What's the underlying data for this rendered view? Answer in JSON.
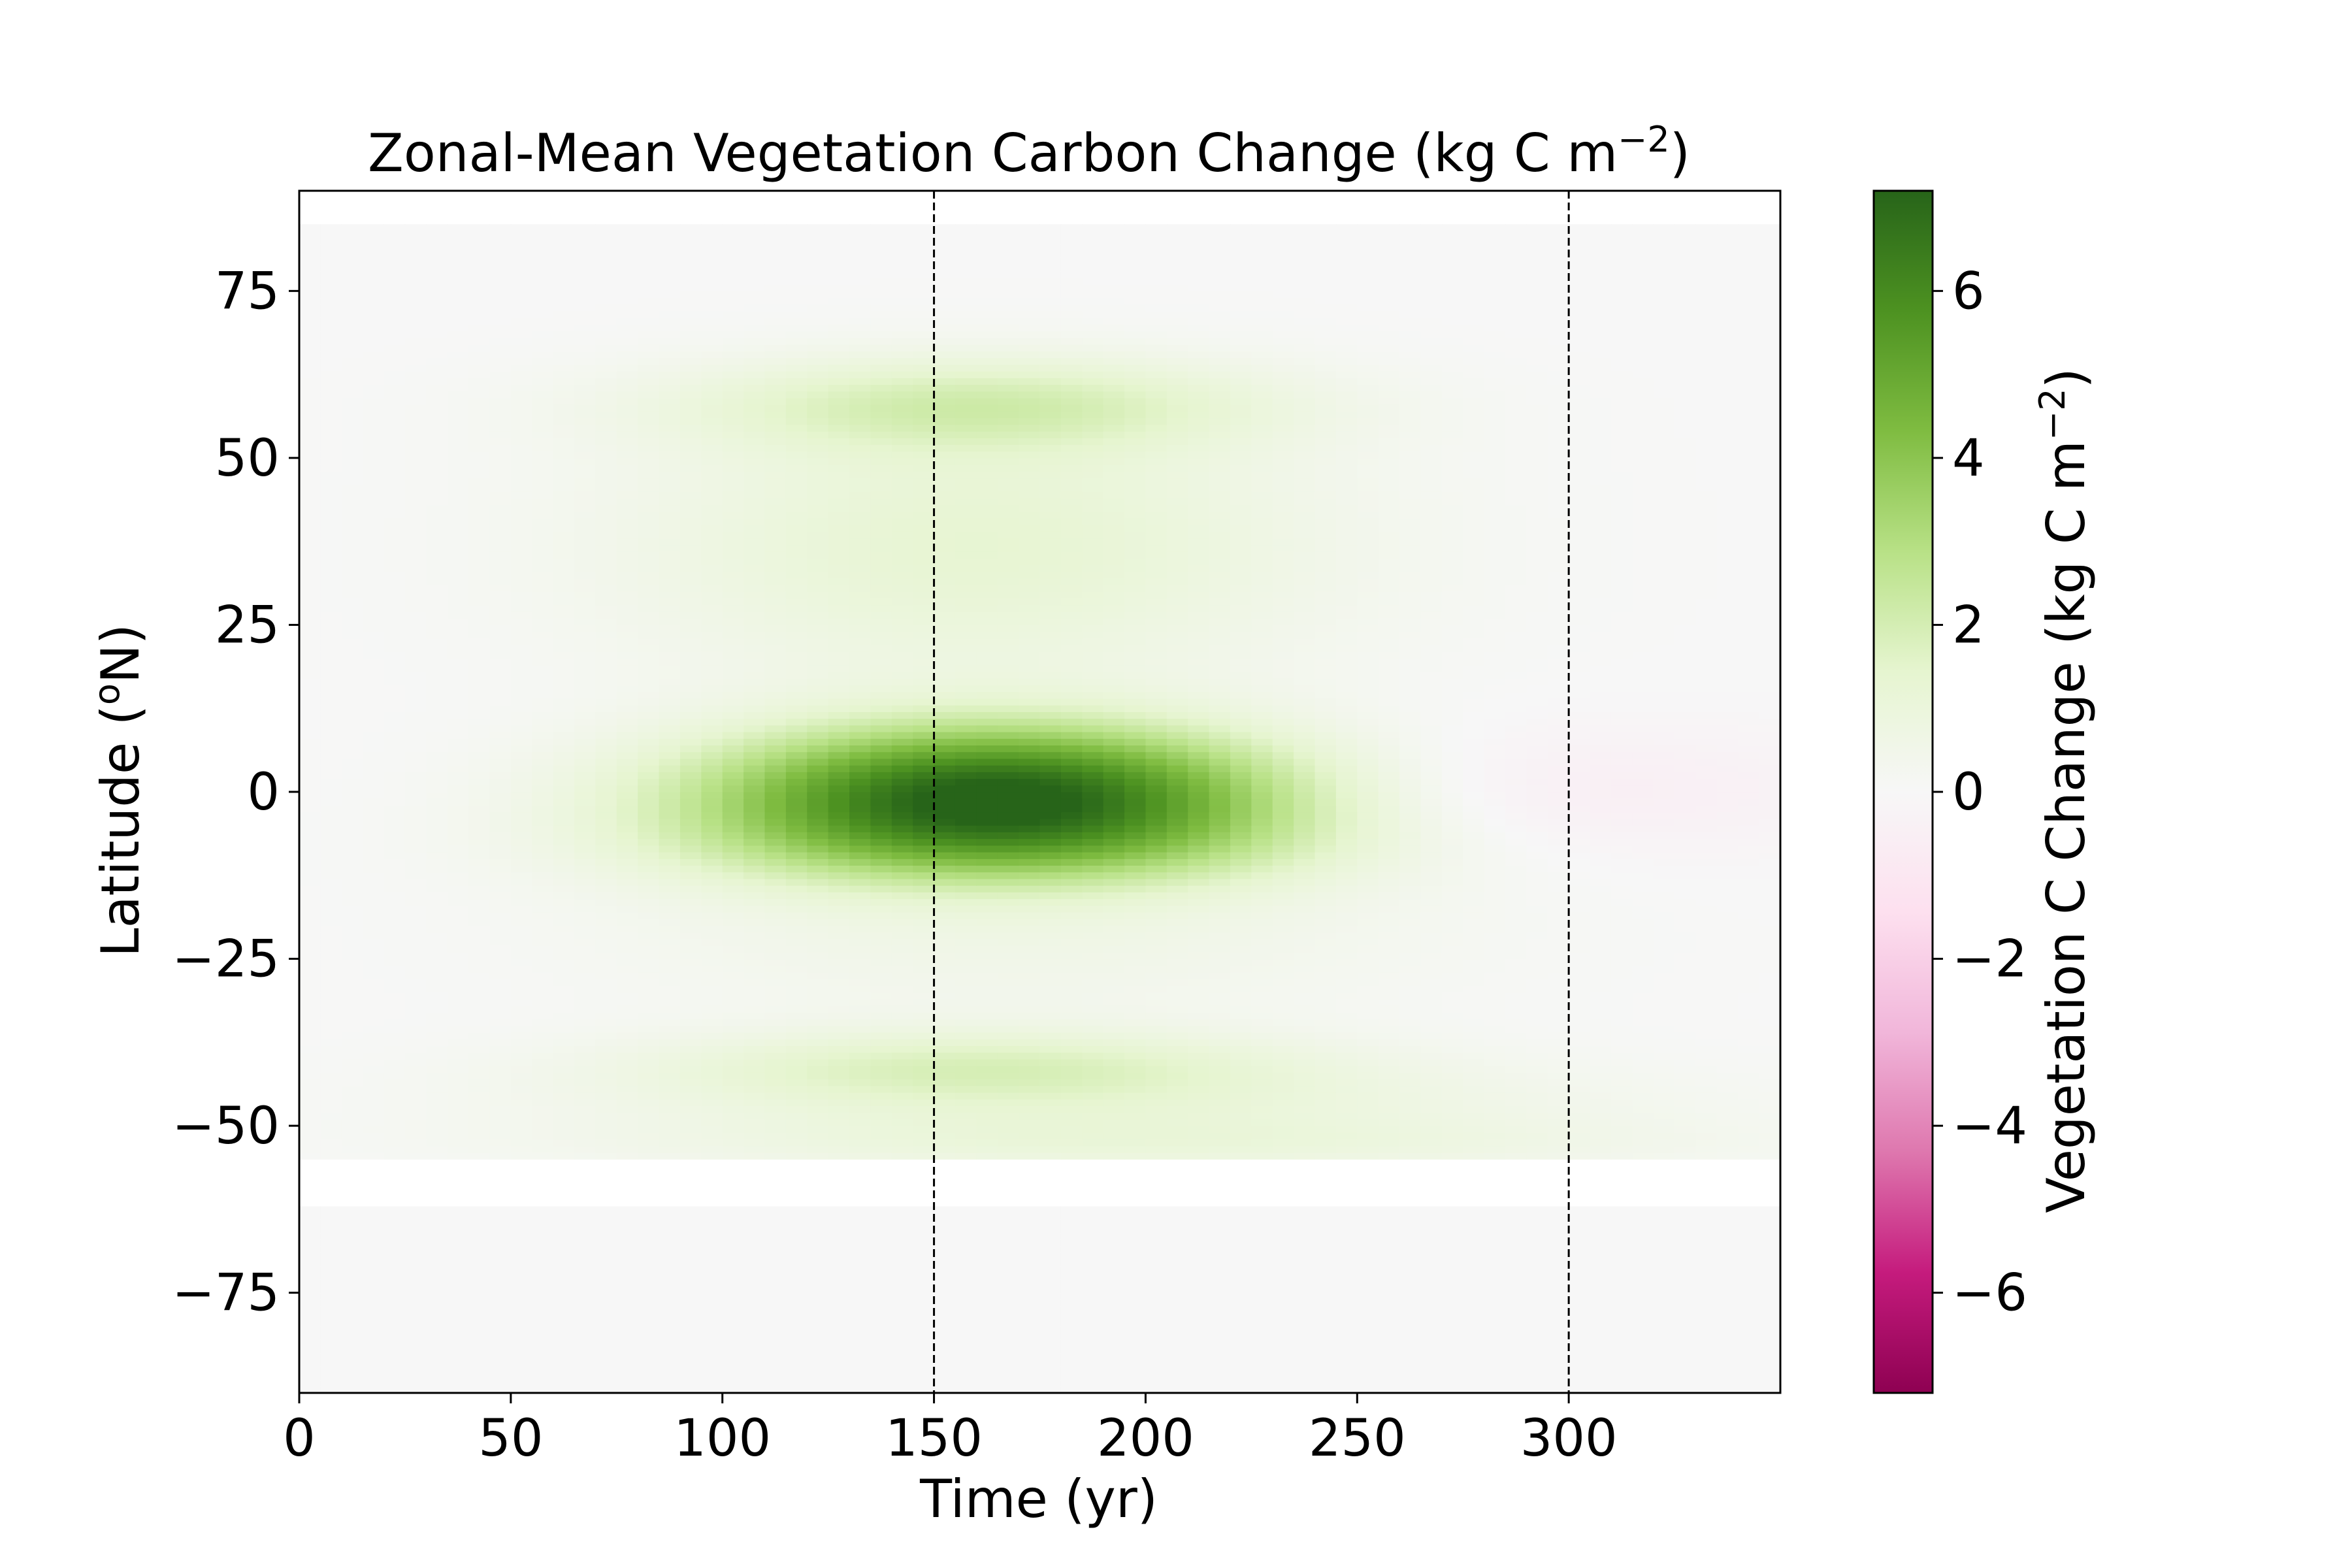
{
  "chart_data": {
    "type": "heatmap",
    "title": "Zonal-Mean Vegetation Carbon Change (kg C m",
    "title_sup": "−2",
    "title_end": ")",
    "xlabel": "Time (yr)",
    "ylabel_pre": "Latitude (",
    "ylabel_sup": "o",
    "ylabel_post": "N)",
    "colorbar_label": "Vegetation C Change (kg C m",
    "colorbar_label_sup": "−2",
    "colorbar_label_end": ")",
    "xlim": [
      0,
      350
    ],
    "ylim": [
      -90,
      90
    ],
    "x_ticks": [
      0,
      50,
      100,
      150,
      200,
      250,
      300
    ],
    "x_tick_labels": [
      "0",
      "50",
      "100",
      "150",
      "200",
      "250",
      "300"
    ],
    "y_ticks": [
      75,
      50,
      25,
      0,
      -25,
      -50,
      -75
    ],
    "y_tick_labels": [
      "75",
      "50",
      "25",
      "0",
      "−25",
      "−50",
      "−75"
    ],
    "color_range": [
      -7.2,
      7.2
    ],
    "colorbar_ticks": [
      6,
      4,
      2,
      0,
      -2,
      -4,
      -6
    ],
    "colorbar_tick_labels": [
      "6",
      "4",
      "2",
      "0",
      "−2",
      "−4",
      "−6"
    ],
    "colormap": "PiYG",
    "colormap_stops": [
      "#8e0152",
      "#c51b7d",
      "#de77ae",
      "#f1b6da",
      "#fde0ef",
      "#f7f7f7",
      "#e6f5d0",
      "#b8e186",
      "#7fbc41",
      "#4d9221",
      "#276419"
    ],
    "missing_color": "#ffffff",
    "data_lat_range": [
      -90,
      85
    ],
    "missing_lat_band": [
      -62,
      -55
    ],
    "vlines": [
      150,
      300
    ],
    "vline_style": "dashed",
    "vline_color": "#000000",
    "features": [
      {
        "lat": 0,
        "lat_width": 7,
        "t_center": 165,
        "t_width": 48,
        "peak": 7.0
      },
      {
        "lat": -8,
        "lat_width": 5,
        "t_center": 165,
        "t_width": 55,
        "peak": 1.8
      },
      {
        "lat": 58,
        "lat_width": 5,
        "t_center": 160,
        "t_width": 50,
        "peak": 1.8
      },
      {
        "lat": 43,
        "lat_width": 12,
        "t_center": 160,
        "t_width": 60,
        "peak": 0.9
      },
      {
        "lat": 28,
        "lat_width": 12,
        "t_center": 160,
        "t_width": 60,
        "peak": 0.7
      },
      {
        "lat": -20,
        "lat_width": 10,
        "t_center": 170,
        "t_width": 70,
        "peak": 0.6
      },
      {
        "lat": -41,
        "lat_width": 4,
        "t_center": 160,
        "t_width": 55,
        "peak": 1.5
      },
      {
        "lat": -47,
        "lat_width": 5,
        "t_center": 190,
        "t_width": 90,
        "peak": 0.8
      },
      {
        "lat": -53,
        "lat_width": 3,
        "t_center": 200,
        "t_width": 90,
        "peak": 0.7
      },
      {
        "lat": 0,
        "lat_width": 7,
        "t_center": 295,
        "t_width": 50,
        "peak": -0.6
      }
    ]
  }
}
